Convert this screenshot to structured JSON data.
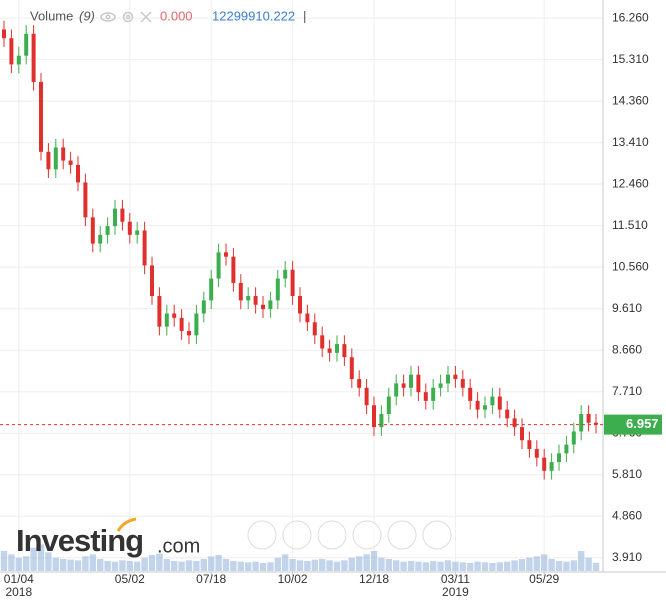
{
  "chart_data": {
    "type": "candlestick",
    "categories": [
      null,
      null,
      "01/04",
      null,
      null,
      null,
      null,
      null,
      null,
      null,
      null,
      null,
      null,
      null,
      null,
      null,
      null,
      "05/02",
      null,
      null,
      null,
      null,
      null,
      null,
      null,
      null,
      null,
      null,
      "07/18",
      null,
      null,
      null,
      null,
      null,
      null,
      null,
      null,
      null,
      null,
      "10/02",
      null,
      null,
      null,
      null,
      null,
      null,
      null,
      null,
      null,
      null,
      "12/18",
      null,
      null,
      null,
      null,
      null,
      null,
      null,
      null,
      null,
      null,
      "03/11",
      null,
      null,
      null,
      null,
      null,
      null,
      null,
      null,
      null,
      null,
      null,
      "05/29",
      null,
      null,
      null,
      null,
      null,
      null,
      null
    ],
    "year_labels": [
      null,
      null,
      "2018",
      null,
      null,
      null,
      null,
      null,
      null,
      null,
      null,
      null,
      null,
      null,
      null,
      null,
      null,
      null,
      null,
      null,
      null,
      null,
      null,
      null,
      null,
      null,
      null,
      null,
      null,
      null,
      null,
      null,
      null,
      null,
      null,
      null,
      null,
      null,
      null,
      null,
      null,
      null,
      null,
      null,
      null,
      null,
      null,
      null,
      null,
      null,
      null,
      null,
      null,
      null,
      null,
      null,
      null,
      null,
      null,
      null,
      null,
      "2019",
      null,
      null,
      null,
      null,
      null,
      null,
      null,
      null,
      null,
      null,
      null,
      null,
      null,
      null,
      null,
      null,
      null,
      null,
      null
    ],
    "open": [
      16.0,
      15.8,
      15.2,
      15.4,
      15.9,
      14.8,
      13.2,
      12.8,
      13.3,
      13.0,
      12.9,
      12.5,
      11.7,
      11.1,
      11.3,
      11.5,
      11.9,
      11.6,
      11.3,
      11.4,
      10.6,
      9.9,
      9.2,
      9.5,
      9.4,
      9.1,
      9.0,
      9.5,
      9.8,
      10.3,
      10.9,
      10.8,
      10.2,
      9.8,
      9.9,
      9.7,
      9.6,
      9.8,
      10.3,
      10.5,
      9.9,
      9.5,
      9.3,
      9.0,
      8.7,
      8.6,
      8.8,
      8.5,
      8.0,
      7.8,
      7.4,
      6.9,
      7.2,
      7.6,
      7.9,
      7.8,
      8.1,
      7.7,
      7.5,
      7.8,
      7.9,
      8.1,
      8.0,
      7.8,
      7.5,
      7.3,
      7.4,
      7.6,
      7.3,
      7.1,
      6.9,
      6.6,
      6.4,
      6.2,
      5.9,
      6.1,
      6.3,
      6.5,
      6.8,
      7.2,
      7.0
    ],
    "high": [
      16.2,
      16.0,
      15.6,
      16.1,
      16.1,
      15.0,
      13.4,
      13.5,
      13.5,
      13.2,
      13.1,
      12.7,
      11.9,
      11.5,
      11.7,
      12.1,
      12.1,
      11.8,
      11.6,
      11.6,
      10.8,
      10.1,
      9.7,
      9.7,
      9.6,
      9.3,
      9.7,
      10.0,
      10.5,
      11.1,
      11.1,
      11.0,
      10.4,
      10.1,
      10.1,
      9.9,
      10.0,
      10.5,
      10.7,
      10.7,
      10.1,
      9.7,
      9.5,
      9.2,
      8.9,
      9.0,
      9.0,
      8.7,
      8.2,
      8.0,
      7.6,
      7.4,
      7.8,
      8.1,
      8.1,
      8.3,
      8.3,
      7.9,
      8.0,
      8.1,
      8.3,
      8.3,
      8.2,
      8.0,
      7.7,
      7.6,
      7.8,
      7.8,
      7.5,
      7.3,
      7.1,
      6.8,
      6.6,
      6.4,
      6.3,
      6.5,
      6.7,
      7.0,
      7.4,
      7.4,
      7.2
    ],
    "low": [
      15.6,
      15.0,
      15.0,
      15.2,
      14.6,
      13.0,
      12.6,
      12.6,
      12.8,
      12.7,
      12.3,
      11.5,
      10.9,
      10.9,
      11.1,
      11.3,
      11.4,
      11.1,
      11.1,
      10.4,
      9.7,
      9.0,
      9.0,
      9.2,
      8.9,
      8.8,
      8.8,
      9.3,
      9.6,
      10.1,
      10.6,
      10.0,
      9.6,
      9.6,
      9.5,
      9.4,
      9.4,
      9.6,
      10.1,
      9.7,
      9.3,
      9.1,
      8.8,
      8.5,
      8.4,
      8.4,
      8.3,
      7.8,
      7.6,
      7.2,
      6.7,
      6.7,
      7.0,
      7.4,
      7.6,
      7.6,
      7.5,
      7.3,
      7.3,
      7.6,
      7.7,
      7.8,
      7.6,
      7.3,
      7.1,
      7.1,
      7.2,
      7.1,
      6.9,
      6.7,
      6.4,
      6.2,
      6.0,
      5.7,
      5.7,
      5.9,
      6.1,
      6.3,
      6.6,
      6.8,
      6.76
    ],
    "close": [
      15.8,
      15.2,
      15.4,
      15.9,
      14.8,
      13.2,
      12.8,
      13.3,
      13.0,
      12.9,
      12.5,
      11.7,
      11.1,
      11.3,
      11.5,
      11.9,
      11.6,
      11.3,
      11.4,
      10.6,
      9.9,
      9.2,
      9.5,
      9.4,
      9.1,
      9.0,
      9.5,
      9.8,
      10.3,
      10.9,
      10.8,
      10.2,
      9.8,
      9.9,
      9.7,
      9.6,
      9.8,
      10.3,
      10.5,
      9.9,
      9.5,
      9.3,
      9.0,
      8.7,
      8.6,
      8.8,
      8.5,
      8.0,
      7.8,
      7.4,
      6.9,
      7.2,
      7.6,
      7.9,
      7.8,
      8.1,
      7.7,
      7.5,
      7.8,
      7.9,
      8.1,
      8.0,
      7.8,
      7.5,
      7.3,
      7.4,
      7.6,
      7.3,
      7.1,
      6.9,
      6.6,
      6.4,
      6.2,
      5.9,
      6.1,
      6.3,
      6.5,
      6.8,
      7.2,
      7.0,
      6.957
    ],
    "up_color": "#3dae4d",
    "down_color": "#e0302e",
    "ylim": [
      3.63,
      16.56
    ],
    "yticks": [
      {
        "value": 16.26,
        "label": "16.260"
      },
      {
        "value": 15.31,
        "label": "15.310"
      },
      {
        "value": 14.36,
        "label": "14.360"
      },
      {
        "value": 13.41,
        "label": "13.410"
      },
      {
        "value": 12.46,
        "label": "12.460"
      },
      {
        "value": 11.51,
        "label": "11.510"
      },
      {
        "value": 10.56,
        "label": "10.560"
      },
      {
        "value": 9.61,
        "label": "9.610"
      },
      {
        "value": 8.66,
        "label": "8.660"
      },
      {
        "value": 7.71,
        "label": "7.710"
      },
      {
        "value": 6.76,
        "label": "6.760"
      },
      {
        "value": 5.81,
        "label": "5.810"
      },
      {
        "value": 4.86,
        "label": "4.860"
      },
      {
        "value": 3.91,
        "label": "3.910"
      }
    ],
    "grid": true,
    "volume": {
      "name": "Volume",
      "period": "(9)",
      "ma_value": "0.000",
      "color": "#9ab7df",
      "lim": [
        0,
        150000000
      ],
      "values": [
        30000000,
        25000000,
        20000000,
        22000000,
        35000000,
        40000000,
        28000000,
        20000000,
        18000000,
        17000000,
        16000000,
        22000000,
        25000000,
        18000000,
        15000000,
        14000000,
        16000000,
        15000000,
        14000000,
        20000000,
        24000000,
        26000000,
        18000000,
        15000000,
        14000000,
        16000000,
        15000000,
        18000000,
        22000000,
        24000000,
        18000000,
        15000000,
        14000000,
        13000000,
        14000000,
        12000000,
        13000000,
        20000000,
        25000000,
        18000000,
        16000000,
        15000000,
        17000000,
        18000000,
        16000000,
        14000000,
        16000000,
        20000000,
        22000000,
        25000000,
        30000000,
        20000000,
        18000000,
        16000000,
        14000000,
        15000000,
        14000000,
        13000000,
        15000000,
        14000000,
        16000000,
        14000000,
        13000000,
        12000000,
        14000000,
        13000000,
        12000000,
        13000000,
        14000000,
        16000000,
        18000000,
        20000000,
        22000000,
        25000000,
        18000000,
        15000000,
        14000000,
        16000000,
        30000000,
        20000000,
        12299910.222
      ]
    },
    "watermark": {
      "brand": "Investing",
      "suffix": ".com"
    },
    "cursor": "|"
  }
}
